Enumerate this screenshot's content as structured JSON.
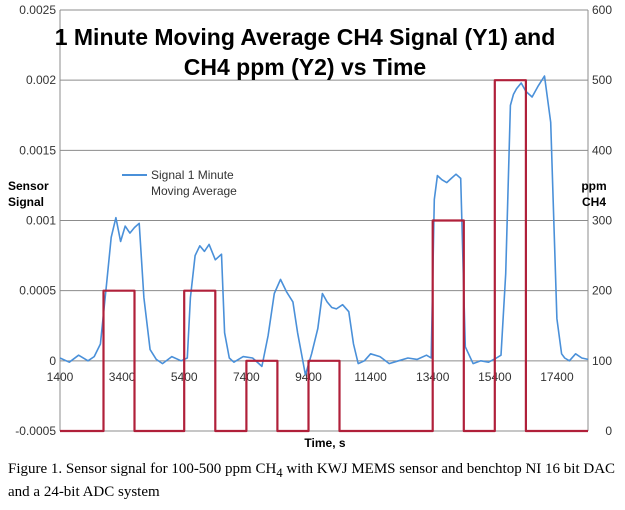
{
  "chart_data": {
    "type": "line",
    "title": "1 Minute Moving Average CH4 Signal (Y1) and CH4 ppm (Y2) vs Time",
    "title_lines": [
      "1 Minute Moving Average CH4 Signal (Y1) and",
      "CH4 ppm (Y2) vs Time"
    ],
    "xlabel": "Time, s",
    "ylabel_left": [
      "Sensor",
      "Signal"
    ],
    "ylabel_right": [
      "ppm",
      "CH4"
    ],
    "xlim": [
      1400,
      18400
    ],
    "ylim_left": [
      -0.0005,
      0.0025
    ],
    "ylim_right": [
      0,
      600
    ],
    "x_ticks": [
      "1400",
      "3400",
      "5400",
      "7400",
      "9400",
      "11400",
      "13400",
      "15400",
      "17400"
    ],
    "x_tick_values": [
      1400,
      3400,
      5400,
      7400,
      9400,
      11400,
      13400,
      15400,
      17400
    ],
    "y_left_ticks": [
      "-0.0005",
      "0",
      "0.0005",
      "0.001",
      "0.0015",
      "0.002",
      "0.0025"
    ],
    "y_left_tick_values": [
      -0.0005,
      0,
      0.0005,
      0.001,
      0.0015,
      0.002,
      0.0025
    ],
    "y_right_ticks": [
      "0",
      "100",
      "200",
      "300",
      "400",
      "500",
      "600"
    ],
    "y_right_tick_values": [
      0,
      100,
      200,
      300,
      400,
      500,
      600
    ],
    "grid": "horizontal",
    "legend_position": "upper-left",
    "series": [
      {
        "name": "Signal 1 Minute Moving Average",
        "legend_lines": [
          "Signal 1 Minute",
          "Moving Average"
        ],
        "axis": "left",
        "color": "#4a90d9",
        "x": [
          1400,
          1700,
          2000,
          2300,
          2500,
          2700,
          2900,
          3050,
          3200,
          3350,
          3500,
          3650,
          3800,
          3950,
          4100,
          4300,
          4500,
          4700,
          5000,
          5300,
          5500,
          5600,
          5750,
          5900,
          6050,
          6200,
          6400,
          6600,
          6700,
          6850,
          7000,
          7300,
          7600,
          7900,
          8100,
          8300,
          8500,
          8700,
          8900,
          9050,
          9200,
          9300,
          9500,
          9700,
          9850,
          10000,
          10150,
          10300,
          10500,
          10700,
          10850,
          11000,
          11200,
          11400,
          11700,
          12000,
          12300,
          12600,
          12900,
          13200,
          13350,
          13450,
          13550,
          13700,
          13850,
          14000,
          14150,
          14300,
          14450,
          14700,
          14950,
          15200,
          15450,
          15600,
          15750,
          15900,
          16000,
          16100,
          16250,
          16400,
          16600,
          16800,
          17000,
          17200,
          17400,
          17550,
          17650,
          17800,
          18000,
          18200,
          18400
        ],
        "values": [
          2e-05,
          -1e-05,
          4e-05,
          0.0,
          3e-05,
          0.00012,
          0.00055,
          0.00088,
          0.00102,
          0.00085,
          0.00096,
          0.00091,
          0.00095,
          0.00098,
          0.00045,
          8e-05,
          1e-05,
          -2e-05,
          3e-05,
          0.0,
          2e-05,
          0.00045,
          0.00075,
          0.00082,
          0.00078,
          0.00083,
          0.00072,
          0.00076,
          0.0002,
          2e-05,
          -1e-05,
          3e-05,
          2e-05,
          -4e-05,
          0.00018,
          0.00048,
          0.00058,
          0.00049,
          0.00042,
          0.0002,
          2e-05,
          -0.0001,
          5e-05,
          0.00023,
          0.00048,
          0.00042,
          0.00038,
          0.00037,
          0.0004,
          0.00035,
          0.00012,
          -2e-05,
          0.0,
          5e-05,
          3e-05,
          -2e-05,
          0.0,
          2e-05,
          1e-05,
          4e-05,
          2e-05,
          0.00115,
          0.00132,
          0.00129,
          0.00127,
          0.0013,
          0.00133,
          0.0013,
          0.0001,
          -2e-05,
          0.0,
          -1e-05,
          2e-05,
          4e-05,
          0.00062,
          0.00182,
          0.0019,
          0.00194,
          0.00198,
          0.00192,
          0.00188,
          0.00196,
          0.00203,
          0.0017,
          0.0003,
          5e-05,
          2e-05,
          0.0,
          5e-05,
          2e-05,
          1e-05
        ]
      },
      {
        "name": "CH4 ppm",
        "axis": "right",
        "color": "#b0203a",
        "step": true,
        "x": [
          1400,
          2800,
          2800,
          3800,
          3800,
          5400,
          5400,
          6400,
          6400,
          7400,
          7400,
          8400,
          8400,
          9400,
          9400,
          10400,
          10400,
          11400,
          11400,
          13400,
          13400,
          14400,
          14400,
          15400,
          15400,
          16400,
          16400,
          17400,
          17400,
          18400
        ],
        "values": [
          0,
          0,
          200,
          200,
          0,
          0,
          200,
          200,
          0,
          0,
          100,
          100,
          0,
          0,
          100,
          100,
          0,
          0,
          0,
          0,
          300,
          300,
          0,
          0,
          500,
          500,
          0,
          0,
          0,
          0
        ]
      }
    ]
  },
  "caption": {
    "text_part1": "Figure 1. Sensor signal for 100-500 ppm CH",
    "subscript": "4",
    "text_part2": " with KWJ MEMS sensor and benchtop NI 16 bit DAC and a 24-bit ADC system"
  }
}
